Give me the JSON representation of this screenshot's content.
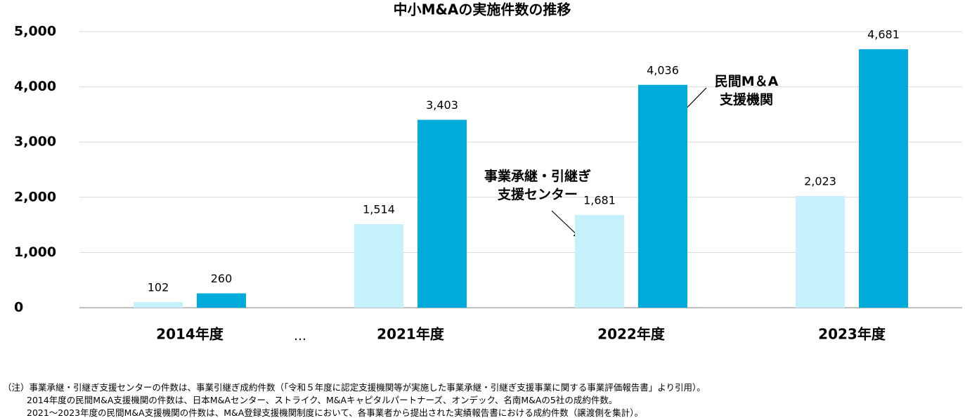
{
  "chart_data": {
    "type": "bar",
    "title": "中小M&Aの実施件数の推移",
    "categories": [
      "2014年度",
      "2021年度",
      "2022年度",
      "2023年度"
    ],
    "x_break_label": "…",
    "series": [
      {
        "name": "事業承継・引継ぎ\n支援センター",
        "color": "#c6f0fb",
        "values": [
          102,
          1514,
          1681,
          2023
        ],
        "value_labels": [
          "102",
          "1,514",
          "1,681",
          "2,023"
        ]
      },
      {
        "name": "民間M＆A\n支援機関",
        "color": "#00abd9",
        "values": [
          260,
          3403,
          4036,
          4681
        ],
        "value_labels": [
          "260",
          "3,403",
          "4,036",
          "4,681"
        ]
      }
    ],
    "ylim": [
      0,
      5000
    ],
    "yticks": [
      0,
      {
        "value": 1000,
        "label": "1,000"
      },
      {
        "value": 2000,
        "label": "2,000"
      },
      {
        "value": 3000,
        "label": "3,000"
      },
      {
        "value": 4000,
        "label": "4,000"
      },
      {
        "value": 5000,
        "label": "5,000"
      }
    ],
    "grid": true,
    "notes": [
      "（注）事業承継・引継ぎ支援センターの件数は、事業引継ぎ成約件数（「令和５年度に認定支援機関等が実施した事業承継・引継ぎ支援事業に関する事業評価報告書」より引用）。",
      "2014年度の民間M&A支援機関の件数は、日本M&Aセンター、ストライク、M&Aキャピタルパートナーズ、オンデック、名南M&Aの5社の成約件数。",
      "2021～2023年度の民間M&A支援機関の件数は、M&A登録支援機関制度において、各事業者から提出された実績報告書における成約件数（譲渡側を集計）。"
    ]
  }
}
